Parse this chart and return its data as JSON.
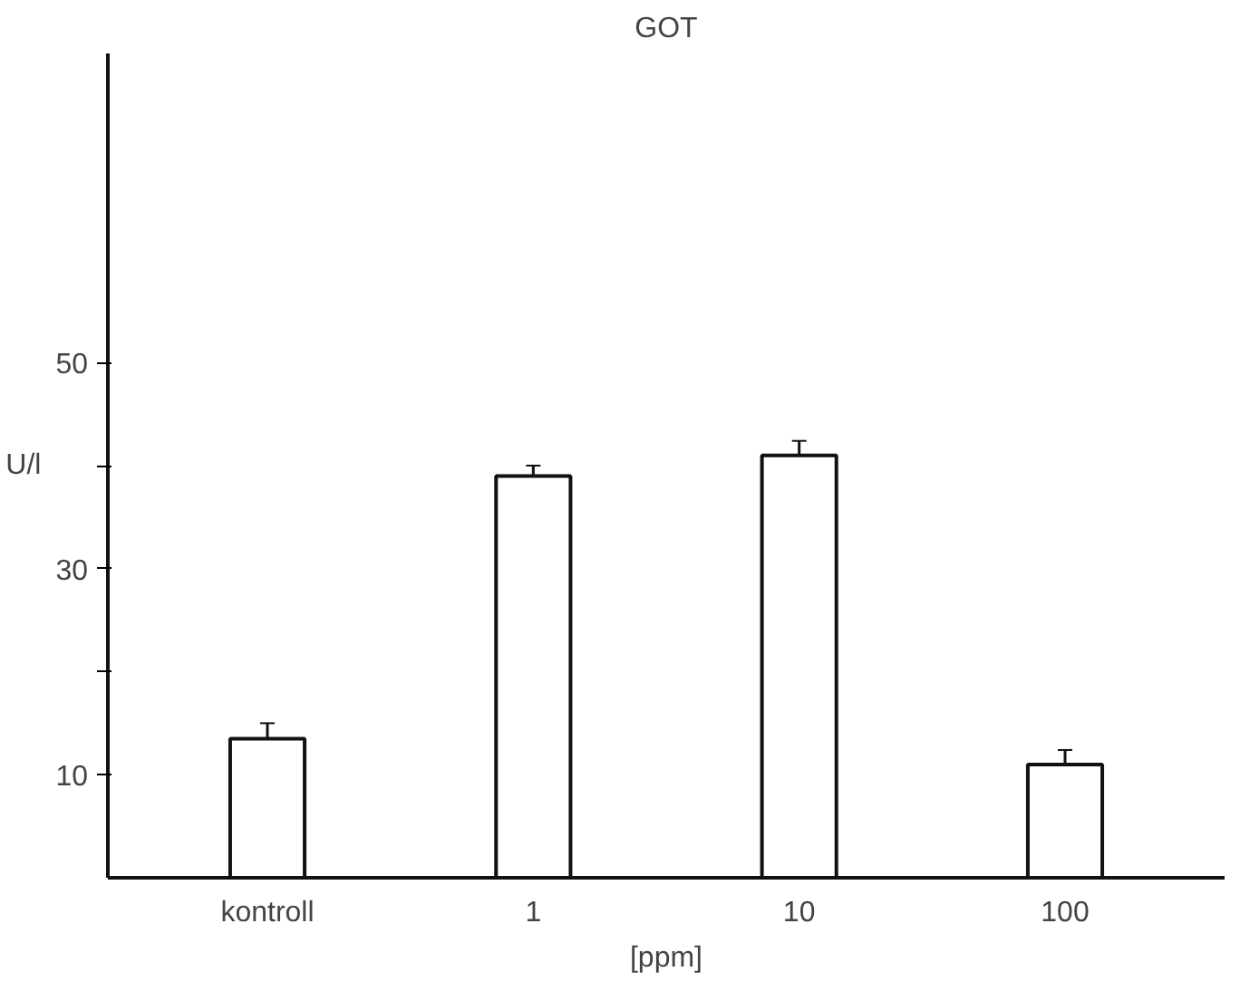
{
  "chart_data": {
    "type": "bar",
    "title": "GOT",
    "xlabel": "[ppm]",
    "ylabel": "U/l",
    "categories": [
      "kontroll",
      "1",
      "10",
      "100"
    ],
    "values": [
      13.5,
      39,
      41,
      11
    ],
    "errors": [
      1.5,
      1,
      1.4,
      1.4
    ],
    "color": "#ffffff",
    "ylim": [
      0,
      80
    ],
    "yticks": [
      {
        "value": 10,
        "label": "10"
      },
      {
        "value": 20,
        "label": null
      },
      {
        "value": 30,
        "label": "30"
      },
      {
        "value": 40,
        "label": null
      },
      {
        "value": 50,
        "label": "50"
      }
    ],
    "grid": false
  }
}
